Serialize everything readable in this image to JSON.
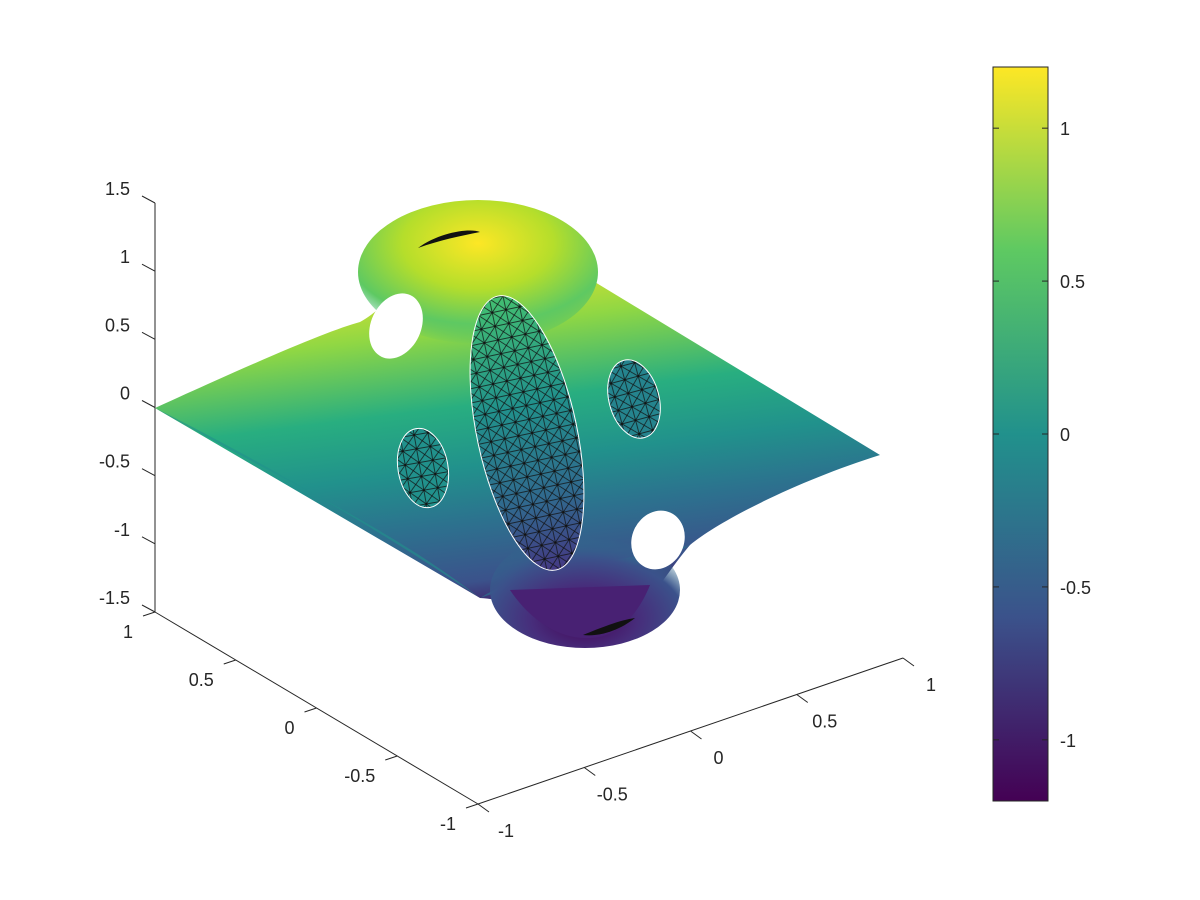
{
  "chart_data": {
    "type": "surface",
    "title": "",
    "xlabel": "",
    "ylabel": "",
    "zlabel": "",
    "x_ticks": [
      -1,
      -0.5,
      0,
      0.5,
      1
    ],
    "x_tick_labels": [
      "-1",
      "-0.5",
      "0",
      "0.5",
      "1"
    ],
    "y_ticks": [
      -1,
      -0.5,
      0,
      0.5,
      1
    ],
    "y_tick_labels": [
      "-1",
      "-0.5",
      "0",
      "0.5",
      "1"
    ],
    "z_ticks": [
      -1.5,
      -1,
      -0.5,
      0,
      0.5,
      1,
      1.5
    ],
    "z_tick_labels": [
      "-1.5",
      "-1",
      "-0.5",
      "0",
      "0.5",
      "1",
      "1.5"
    ],
    "xlim": [
      -1,
      1
    ],
    "ylim": [
      -1,
      1
    ],
    "zlim": [
      -1.5,
      1.5
    ],
    "colormap": "viridis",
    "colormap_stops": [
      "#440154",
      "#3b528b",
      "#21918c",
      "#5ec962",
      "#fde725"
    ],
    "clim": [
      -1.2,
      1.2
    ],
    "colorbar_ticks": [
      -1,
      -0.5,
      0,
      0.5,
      1
    ],
    "colorbar_tick_labels": [
      "-1",
      "-0.5",
      "0",
      "0.5",
      "1"
    ],
    "colorbar_position": "right",
    "peak": {
      "z": 1.2
    },
    "trough": {
      "z": -1.2
    },
    "holes": [
      {
        "shape": "ellipse",
        "mesh_fill": true
      },
      {
        "shape": "ellipse",
        "mesh_fill": true
      },
      {
        "shape": "ellipse",
        "mesh_fill": true
      },
      {
        "shape": "ellipse",
        "mesh_fill": false
      },
      {
        "shape": "ellipse",
        "mesh_fill": false
      }
    ],
    "grid": false,
    "box": false
  }
}
